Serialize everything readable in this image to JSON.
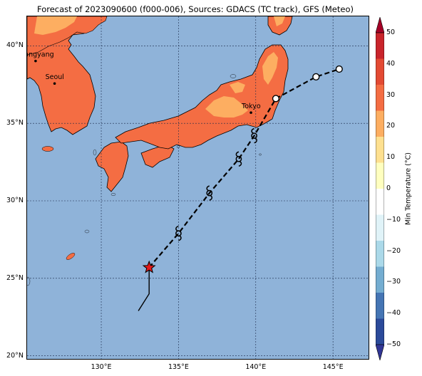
{
  "title": "Forecast of 2023090600 (f000-006), Sources: GDACS (TC track), GFS (Meteo)",
  "map": {
    "lon_range": [
      125.2,
      147.3
    ],
    "lat_range": [
      19.8,
      41.9
    ],
    "lat_ticks": [
      {
        "value": 20,
        "label": "20°N"
      },
      {
        "value": 25,
        "label": "25°N"
      },
      {
        "value": 30,
        "label": "30°N"
      },
      {
        "value": 35,
        "label": "35°N"
      },
      {
        "value": 40,
        "label": "40°N"
      }
    ],
    "lon_ticks": [
      {
        "value": 130,
        "label": "130°E"
      },
      {
        "value": 135,
        "label": "135°E"
      },
      {
        "value": 140,
        "label": "140°E"
      },
      {
        "value": 145,
        "label": "145°E"
      }
    ],
    "cities": [
      {
        "name": "Pyongyang",
        "lon": 125.75,
        "lat": 39.02
      },
      {
        "name": "Seoul",
        "lon": 126.98,
        "lat": 37.57
      },
      {
        "name": "Tokyo",
        "lon": 139.69,
        "lat": 35.69
      }
    ],
    "track": {
      "past": [
        [
          132.4,
          22.9
        ],
        [
          133.1,
          24.0
        ],
        [
          133.1,
          25.0
        ],
        [
          133.1,
          25.7
        ]
      ],
      "current": [
        133.1,
        25.7
      ],
      "forecast": [
        [
          133.1,
          25.7
        ],
        [
          135.0,
          27.9
        ],
        [
          137.0,
          30.5
        ],
        [
          138.9,
          32.7
        ],
        [
          139.9,
          34.2
        ],
        [
          141.3,
          36.6
        ],
        [
          143.9,
          38.0
        ],
        [
          145.4,
          38.5
        ]
      ],
      "cyclone_symbols": [
        [
          135.0,
          27.9
        ],
        [
          137.0,
          30.5
        ],
        [
          138.9,
          32.7
        ],
        [
          139.9,
          34.2
        ]
      ],
      "low_symbols": [
        [
          141.3,
          36.6
        ],
        [
          143.9,
          38.0
        ],
        [
          145.4,
          38.5
        ]
      ]
    }
  },
  "colorbar": {
    "label": "Min Temperature (°C)",
    "ticks": [
      "50",
      "40",
      "30",
      "20",
      "10",
      "0",
      "−10",
      "−20",
      "−30",
      "−40",
      "−50"
    ],
    "colors_top_to_bottom": [
      "#a50026",
      "#c9242b",
      "#e34a33",
      "#f46d43",
      "#fdae61",
      "#fee090",
      "#ffffbf",
      "#ffffff",
      "#e0f3f8",
      "#abd9e9",
      "#74add1",
      "#4575b4",
      "#2b4a9a",
      "#313695"
    ],
    "colors": {
      "ocean": "#8fb3d9",
      "land_warm": "#f46d43",
      "land_mild": "#fdae61"
    }
  }
}
